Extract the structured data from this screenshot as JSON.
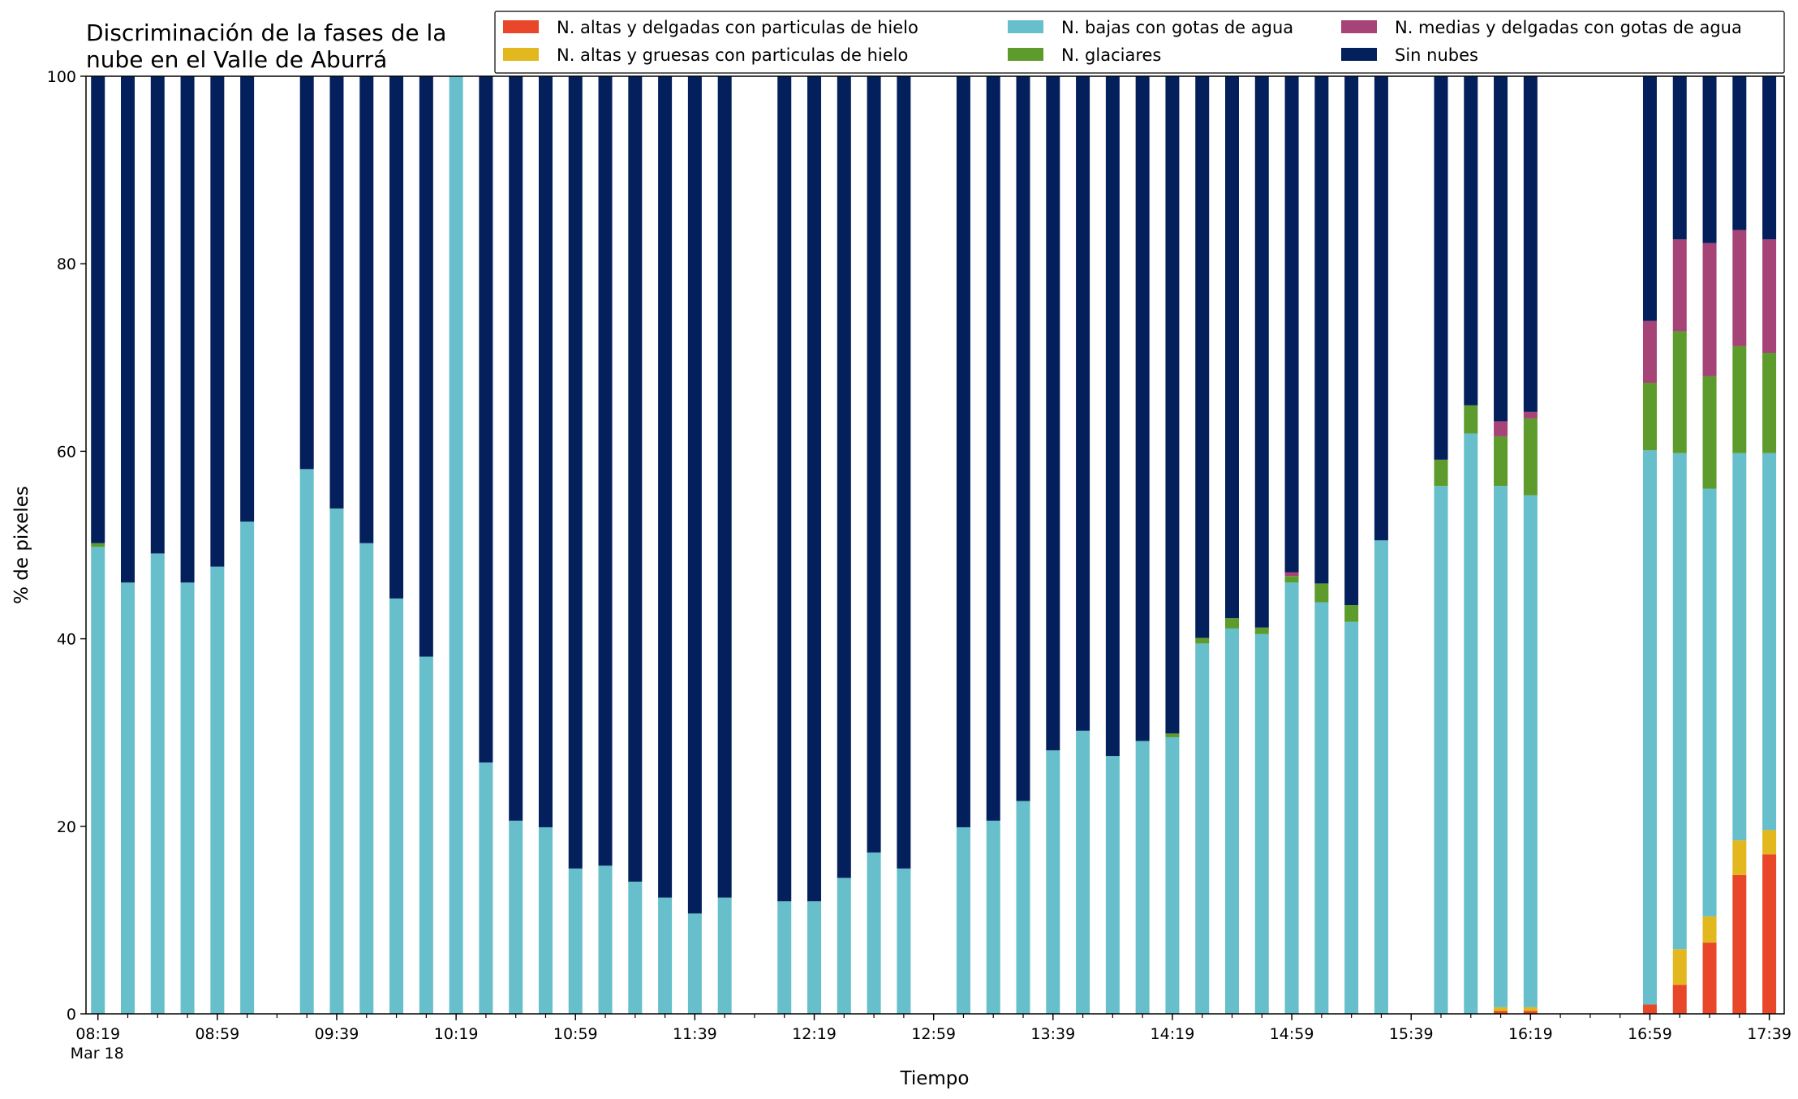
{
  "chart_data": {
    "type": "bar",
    "stacked": true,
    "title": "Discriminación de la fases de la nube en el Valle de Aburrá",
    "title_lines": [
      "Discriminación de la fases de la",
      "nube en el Valle de Aburrá"
    ],
    "xlabel": "Tiempo",
    "ylabel": "% de pixeles",
    "ylim": [
      0,
      100
    ],
    "yticks": [
      0,
      20,
      40,
      60,
      80,
      100
    ],
    "x_range_minutes": [
      495,
      1064
    ],
    "xticks": [
      {
        "min": 499,
        "label": "08:19",
        "sublabel": "Mar 18"
      },
      {
        "min": 539,
        "label": "08:59"
      },
      {
        "min": 579,
        "label": "09:39"
      },
      {
        "min": 619,
        "label": "10:19"
      },
      {
        "min": 659,
        "label": "10:59"
      },
      {
        "min": 699,
        "label": "11:39"
      },
      {
        "min": 739,
        "label": "12:19"
      },
      {
        "min": 779,
        "label": "12:59"
      },
      {
        "min": 819,
        "label": "13:39"
      },
      {
        "min": 859,
        "label": "14:19"
      },
      {
        "min": 899,
        "label": "14:59"
      },
      {
        "min": 939,
        "label": "15:39"
      },
      {
        "min": 979,
        "label": "16:19"
      },
      {
        "min": 1019,
        "label": "16:59"
      },
      {
        "min": 1059,
        "label": "17:39"
      }
    ],
    "minor_tick_step": 10,
    "legend_position": "top-right",
    "series": [
      {
        "key": "ice_thin",
        "name": "N. altas y delgadas con particulas de hielo",
        "color": "#e8472a"
      },
      {
        "key": "ice_thick",
        "name": "N. altas y gruesas con particulas de hielo",
        "color": "#e3b81e"
      },
      {
        "key": "low_water",
        "name": "N. bajas con gotas de agua",
        "color": "#66bfcb"
      },
      {
        "key": "glaciated",
        "name": "N. glaciares",
        "color": "#5d9c2c"
      },
      {
        "key": "mid_water",
        "name": "N. medias y delgadas con gotas de agua",
        "color": "#a64478"
      },
      {
        "key": "clear",
        "name": "Sin nubes",
        "color": "#031f5c"
      }
    ],
    "legend_order": [
      "ice_thin",
      "ice_thick",
      "low_water",
      "glaciated",
      "mid_water",
      "clear"
    ],
    "bars": [
      {
        "time": "08:19",
        "ice_thin": 0,
        "ice_thick": 0,
        "low_water": 49.8,
        "glaciated": 0.4,
        "mid_water": 0,
        "clear": 49.8
      },
      {
        "time": "08:29",
        "ice_thin": 0,
        "ice_thick": 0,
        "low_water": 46.0,
        "glaciated": 0,
        "mid_water": 0,
        "clear": 54.0
      },
      {
        "time": "08:39",
        "ice_thin": 0,
        "ice_thick": 0,
        "low_water": 49.1,
        "glaciated": 0,
        "mid_water": 0,
        "clear": 50.9
      },
      {
        "time": "08:49",
        "ice_thin": 0,
        "ice_thick": 0,
        "low_water": 46.0,
        "glaciated": 0,
        "mid_water": 0,
        "clear": 54.0
      },
      {
        "time": "08:59",
        "ice_thin": 0,
        "ice_thick": 0,
        "low_water": 47.7,
        "glaciated": 0,
        "mid_water": 0,
        "clear": 52.3
      },
      {
        "time": "09:09",
        "ice_thin": 0,
        "ice_thick": 0,
        "low_water": 52.5,
        "glaciated": 0,
        "mid_water": 0,
        "clear": 47.5
      },
      {
        "time": "09:29",
        "ice_thin": 0,
        "ice_thick": 0,
        "low_water": 58.1,
        "glaciated": 0,
        "mid_water": 0,
        "clear": 41.9
      },
      {
        "time": "09:39",
        "ice_thin": 0,
        "ice_thick": 0,
        "low_water": 53.9,
        "glaciated": 0,
        "mid_water": 0,
        "clear": 46.1
      },
      {
        "time": "09:49",
        "ice_thin": 0,
        "ice_thick": 0,
        "low_water": 50.2,
        "glaciated": 0,
        "mid_water": 0,
        "clear": 49.8
      },
      {
        "time": "09:59",
        "ice_thin": 0,
        "ice_thick": 0,
        "low_water": 44.3,
        "glaciated": 0,
        "mid_water": 0,
        "clear": 55.7
      },
      {
        "time": "10:09",
        "ice_thin": 0,
        "ice_thick": 0,
        "low_water": 38.1,
        "glaciated": 0,
        "mid_water": 0,
        "clear": 61.9
      },
      {
        "time": "10:19",
        "ice_thin": 0,
        "ice_thick": 0,
        "low_water": 100.0,
        "glaciated": 0,
        "mid_water": 0,
        "clear": 0
      },
      {
        "time": "10:29",
        "ice_thin": 0,
        "ice_thick": 0,
        "low_water": 26.8,
        "glaciated": 0,
        "mid_water": 0,
        "clear": 73.2
      },
      {
        "time": "10:39",
        "ice_thin": 0,
        "ice_thick": 0,
        "low_water": 20.6,
        "glaciated": 0,
        "mid_water": 0,
        "clear": 79.4
      },
      {
        "time": "10:49",
        "ice_thin": 0,
        "ice_thick": 0,
        "low_water": 19.9,
        "glaciated": 0,
        "mid_water": 0,
        "clear": 80.1
      },
      {
        "time": "10:59",
        "ice_thin": 0,
        "ice_thick": 0,
        "low_water": 15.5,
        "glaciated": 0,
        "mid_water": 0,
        "clear": 84.5
      },
      {
        "time": "11:09",
        "ice_thin": 0,
        "ice_thick": 0,
        "low_water": 15.8,
        "glaciated": 0,
        "mid_water": 0,
        "clear": 84.2
      },
      {
        "time": "11:19",
        "ice_thin": 0,
        "ice_thick": 0,
        "low_water": 14.1,
        "glaciated": 0,
        "mid_water": 0,
        "clear": 85.9
      },
      {
        "time": "11:29",
        "ice_thin": 0,
        "ice_thick": 0,
        "low_water": 12.4,
        "glaciated": 0,
        "mid_water": 0,
        "clear": 87.6
      },
      {
        "time": "11:39",
        "ice_thin": 0,
        "ice_thick": 0,
        "low_water": 10.7,
        "glaciated": 0,
        "mid_water": 0,
        "clear": 89.3
      },
      {
        "time": "11:49",
        "ice_thin": 0,
        "ice_thick": 0,
        "low_water": 12.4,
        "glaciated": 0,
        "mid_water": 0,
        "clear": 87.6
      },
      {
        "time": "12:09",
        "ice_thin": 0,
        "ice_thick": 0,
        "low_water": 12.0,
        "glaciated": 0,
        "mid_water": 0,
        "clear": 88.0
      },
      {
        "time": "12:19",
        "ice_thin": 0,
        "ice_thick": 0,
        "low_water": 12.0,
        "glaciated": 0,
        "mid_water": 0,
        "clear": 88.0
      },
      {
        "time": "12:29",
        "ice_thin": 0,
        "ice_thick": 0,
        "low_water": 14.5,
        "glaciated": 0,
        "mid_water": 0,
        "clear": 85.5
      },
      {
        "time": "12:39",
        "ice_thin": 0,
        "ice_thick": 0,
        "low_water": 17.2,
        "glaciated": 0,
        "mid_water": 0,
        "clear": 82.8
      },
      {
        "time": "12:49",
        "ice_thin": 0,
        "ice_thick": 0,
        "low_water": 15.5,
        "glaciated": 0,
        "mid_water": 0,
        "clear": 84.5
      },
      {
        "time": "13:09",
        "ice_thin": 0,
        "ice_thick": 0,
        "low_water": 19.9,
        "glaciated": 0,
        "mid_water": 0,
        "clear": 80.1
      },
      {
        "time": "13:19",
        "ice_thin": 0,
        "ice_thick": 0,
        "low_water": 20.6,
        "glaciated": 0,
        "mid_water": 0,
        "clear": 79.4
      },
      {
        "time": "13:29",
        "ice_thin": 0,
        "ice_thick": 0,
        "low_water": 22.7,
        "glaciated": 0,
        "mid_water": 0,
        "clear": 77.3
      },
      {
        "time": "13:39",
        "ice_thin": 0,
        "ice_thick": 0,
        "low_water": 28.1,
        "glaciated": 0,
        "mid_water": 0,
        "clear": 71.9
      },
      {
        "time": "13:49",
        "ice_thin": 0,
        "ice_thick": 0,
        "low_water": 30.2,
        "glaciated": 0,
        "mid_water": 0,
        "clear": 69.8
      },
      {
        "time": "13:59",
        "ice_thin": 0,
        "ice_thick": 0,
        "low_water": 27.5,
        "glaciated": 0,
        "mid_water": 0,
        "clear": 72.5
      },
      {
        "time": "14:09",
        "ice_thin": 0,
        "ice_thick": 0,
        "low_water": 29.1,
        "glaciated": 0,
        "mid_water": 0,
        "clear": 70.9
      },
      {
        "time": "14:19",
        "ice_thin": 0,
        "ice_thick": 0,
        "low_water": 29.5,
        "glaciated": 0.4,
        "mid_water": 0,
        "clear": 70.1
      },
      {
        "time": "14:29",
        "ice_thin": 0,
        "ice_thick": 0,
        "low_water": 39.5,
        "glaciated": 0.6,
        "mid_water": 0,
        "clear": 59.9
      },
      {
        "time": "14:39",
        "ice_thin": 0,
        "ice_thick": 0,
        "low_water": 41.1,
        "glaciated": 1.1,
        "mid_water": 0,
        "clear": 57.8
      },
      {
        "time": "14:49",
        "ice_thin": 0,
        "ice_thick": 0,
        "low_water": 40.5,
        "glaciated": 0.7,
        "mid_water": 0,
        "clear": 58.8
      },
      {
        "time": "14:59",
        "ice_thin": 0,
        "ice_thick": 0,
        "low_water": 46.0,
        "glaciated": 0.7,
        "mid_water": 0.4,
        "clear": 52.9
      },
      {
        "time": "15:09",
        "ice_thin": 0,
        "ice_thick": 0,
        "low_water": 43.9,
        "glaciated": 2.0,
        "mid_water": 0,
        "clear": 54.1
      },
      {
        "time": "15:19",
        "ice_thin": 0,
        "ice_thick": 0,
        "low_water": 41.8,
        "glaciated": 1.8,
        "mid_water": 0,
        "clear": 56.4
      },
      {
        "time": "15:29",
        "ice_thin": 0,
        "ice_thick": 0,
        "low_water": 50.5,
        "glaciated": 0,
        "mid_water": 0,
        "clear": 49.5
      },
      {
        "time": "15:49",
        "ice_thin": 0,
        "ice_thick": 0,
        "low_water": 56.3,
        "glaciated": 2.8,
        "mid_water": 0,
        "clear": 40.9
      },
      {
        "time": "15:59",
        "ice_thin": 0,
        "ice_thick": 0,
        "low_water": 61.9,
        "glaciated": 3.0,
        "mid_water": 0,
        "clear": 35.1
      },
      {
        "time": "16:09",
        "ice_thin": 0.3,
        "ice_thick": 0.4,
        "low_water": 55.6,
        "glaciated": 5.3,
        "mid_water": 1.6,
        "clear": 36.8
      },
      {
        "time": "16:19",
        "ice_thin": 0.3,
        "ice_thick": 0.4,
        "low_water": 54.6,
        "glaciated": 8.2,
        "mid_water": 0.7,
        "clear": 35.8
      },
      {
        "time": "16:59",
        "ice_thin": 1.0,
        "ice_thick": 0,
        "low_water": 59.1,
        "glaciated": 7.2,
        "mid_water": 6.6,
        "clear": 26.1
      },
      {
        "time": "17:09",
        "ice_thin": 3.1,
        "ice_thick": 3.8,
        "low_water": 52.9,
        "glaciated": 13.0,
        "mid_water": 9.8,
        "clear": 17.4
      },
      {
        "time": "17:19",
        "ice_thin": 7.6,
        "ice_thick": 2.8,
        "low_water": 45.6,
        "glaciated": 12.0,
        "mid_water": 14.2,
        "clear": 17.8
      },
      {
        "time": "17:29",
        "ice_thin": 14.8,
        "ice_thick": 3.7,
        "low_water": 41.3,
        "glaciated": 11.4,
        "mid_water": 12.4,
        "clear": 16.4
      },
      {
        "time": "17:39",
        "ice_thin": 17.0,
        "ice_thick": 2.6,
        "low_water": 40.2,
        "glaciated": 10.7,
        "mid_water": 12.1,
        "clear": 17.4
      }
    ]
  }
}
